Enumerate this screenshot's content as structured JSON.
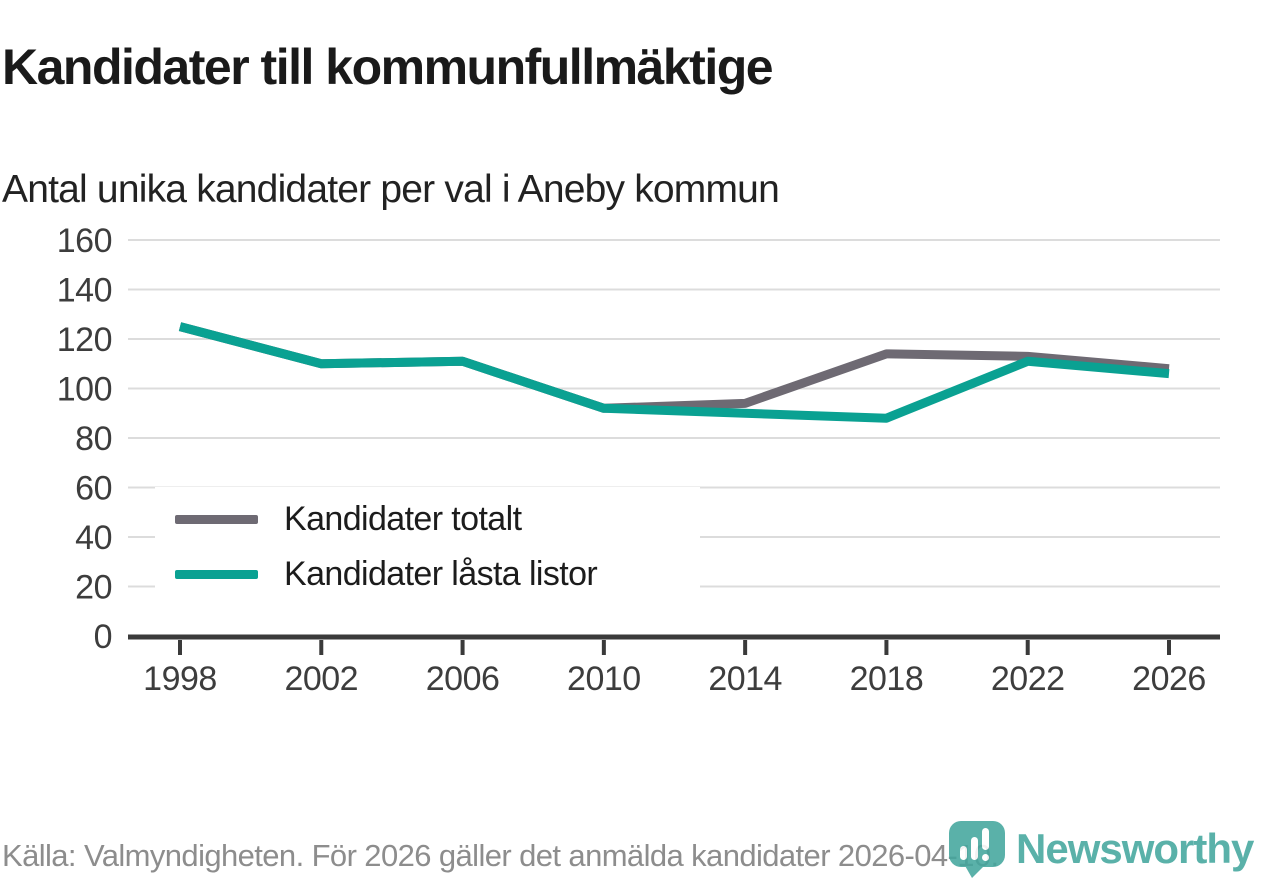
{
  "header": {
    "title": "Kandidater till kommunfullmäktige",
    "subtitle": "Antal unika kandidater per val i Aneby kommun"
  },
  "chart_data": {
    "type": "line",
    "title": "Kandidater till kommunfullmäktige",
    "subtitle": "Antal unika kandidater per val i Aneby kommun",
    "categories": [
      "1998",
      "2002",
      "2006",
      "2010",
      "2014",
      "2018",
      "2022",
      "2026"
    ],
    "series": [
      {
        "name": "Kandidater totalt",
        "color": "#6e6a73",
        "values": [
          125,
          110,
          111,
          92,
          94,
          114,
          113,
          108
        ]
      },
      {
        "name": "Kandidater låsta listor",
        "color": "#0aa192",
        "values": [
          125,
          110,
          111,
          92,
          90,
          88,
          111,
          106
        ]
      }
    ],
    "xlabel": "",
    "ylabel": "",
    "ylim": [
      0,
      160
    ],
    "yticks": [
      0,
      20,
      40,
      60,
      80,
      100,
      120,
      140,
      160
    ],
    "grid": "horizontal",
    "legend_position": "inside-bottom-left"
  },
  "footer": {
    "source": "Källa: Valmyndigheten. För 2026 gäller det anmälda kandidater 2026-04-10.",
    "brand": "Newsworthy",
    "brand_color": "#44a79e"
  },
  "colors": {
    "axis": "#3a3a3a",
    "grid": "#dcdcdc",
    "tick_label": "#3d3d3d",
    "title_text": "#1a1a1a",
    "subtitle_text": "#222222",
    "source_text": "#8d8d8d"
  }
}
